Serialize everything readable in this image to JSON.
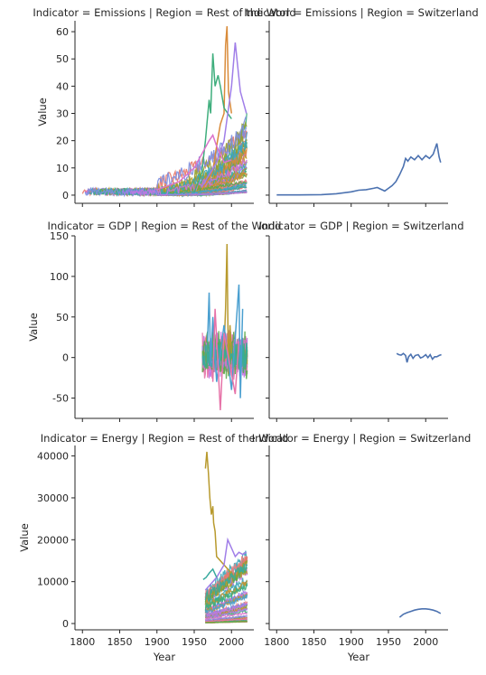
{
  "figure": {
    "xlabel": "Year",
    "ylabel": "Value",
    "x_ticks": [
      1800,
      1850,
      1900,
      1950,
      2000
    ]
  },
  "chart_data": [
    {
      "type": "line",
      "title": "Indicator = Emissions | Region = Rest of the World",
      "xlabel": "",
      "ylabel": "Value",
      "xlim": [
        1790,
        2030
      ],
      "ylim": [
        -3,
        64
      ],
      "y_ticks": [
        0,
        10,
        20,
        30,
        40,
        50,
        60
      ],
      "series_note_count": 60,
      "color": "#888888",
      "grid": false
    },
    {
      "type": "line",
      "title": "Indicator = Emissions | Region = Switzerland",
      "xlabel": "",
      "ylabel": "",
      "xlim": [
        1790,
        2030
      ],
      "ylim": [
        -3,
        64
      ],
      "y_ticks": [
        0,
        10,
        20,
        30,
        40,
        50,
        60
      ],
      "color": "#4c72b0",
      "x": [
        1800,
        1830,
        1860,
        1880,
        1900,
        1910,
        1920,
        1930,
        1935,
        1945,
        1950,
        1955,
        1960,
        1965,
        1970,
        1973,
        1976,
        1980,
        1985,
        1990,
        1995,
        2000,
        2005,
        2010,
        2015,
        2018,
        2020
      ],
      "y": [
        0.1,
        0.1,
        0.2,
        0.5,
        1.2,
        1.8,
        2.0,
        2.5,
        2.8,
        1.5,
        2.5,
        3.5,
        5.0,
        7.5,
        10.5,
        13.5,
        12.5,
        14.0,
        13.0,
        14.5,
        13.0,
        14.5,
        13.5,
        15.0,
        19.0,
        14.0,
        12.0
      ],
      "grid": false
    },
    {
      "type": "line",
      "title": "Indicator = GDP | Region = Rest of the World",
      "xlabel": "",
      "ylabel": "Value",
      "xlim": [
        1790,
        2030
      ],
      "ylim": [
        -75,
        150
      ],
      "y_ticks": [
        -50,
        0,
        50,
        100,
        150
      ],
      "grid": false
    },
    {
      "type": "line",
      "title": "Indicator = GDP | Region = Switzerland",
      "xlabel": "",
      "ylabel": "",
      "xlim": [
        1790,
        2030
      ],
      "ylim": [
        -75,
        150
      ],
      "y_ticks": [
        -50,
        0,
        50,
        100,
        150
      ],
      "color": "#4c72b0",
      "x": [
        1961,
        1964,
        1967,
        1970,
        1973,
        1975,
        1977,
        1980,
        1983,
        1986,
        1990,
        1993,
        1996,
        2000,
        2003,
        2006,
        2009,
        2012,
        2015,
        2018,
        2021
      ],
      "y": [
        5.0,
        3.5,
        3.0,
        5.0,
        2.5,
        -6.0,
        1.0,
        4.0,
        -1.0,
        2.5,
        3.5,
        -0.5,
        0.5,
        3.5,
        -0.2,
        3.5,
        -2.0,
        1.0,
        1.0,
        2.5,
        3.5
      ],
      "grid": false
    },
    {
      "type": "line",
      "title": "Indicator = Energy | Region = Rest of the World",
      "xlabel": "Year",
      "ylabel": "Value",
      "xlim": [
        1790,
        2030
      ],
      "ylim": [
        -1500,
        42500
      ],
      "y_ticks": [
        0,
        10000,
        20000,
        30000,
        40000
      ],
      "grid": false
    },
    {
      "type": "line",
      "title": "Indicator = Energy | Region = Switzerland",
      "xlabel": "Year",
      "ylabel": "",
      "xlim": [
        1790,
        2030
      ],
      "ylim": [
        -1500,
        42500
      ],
      "y_ticks": [
        0,
        10000,
        20000,
        30000,
        40000
      ],
      "color": "#4c72b0",
      "x": [
        1965,
        1970,
        1975,
        1980,
        1985,
        1990,
        1995,
        2000,
        2005,
        2010,
        2015,
        2020
      ],
      "y": [
        1500,
        2200,
        2600,
        2900,
        3200,
        3400,
        3500,
        3500,
        3400,
        3200,
        2900,
        2400
      ],
      "grid": false
    }
  ]
}
